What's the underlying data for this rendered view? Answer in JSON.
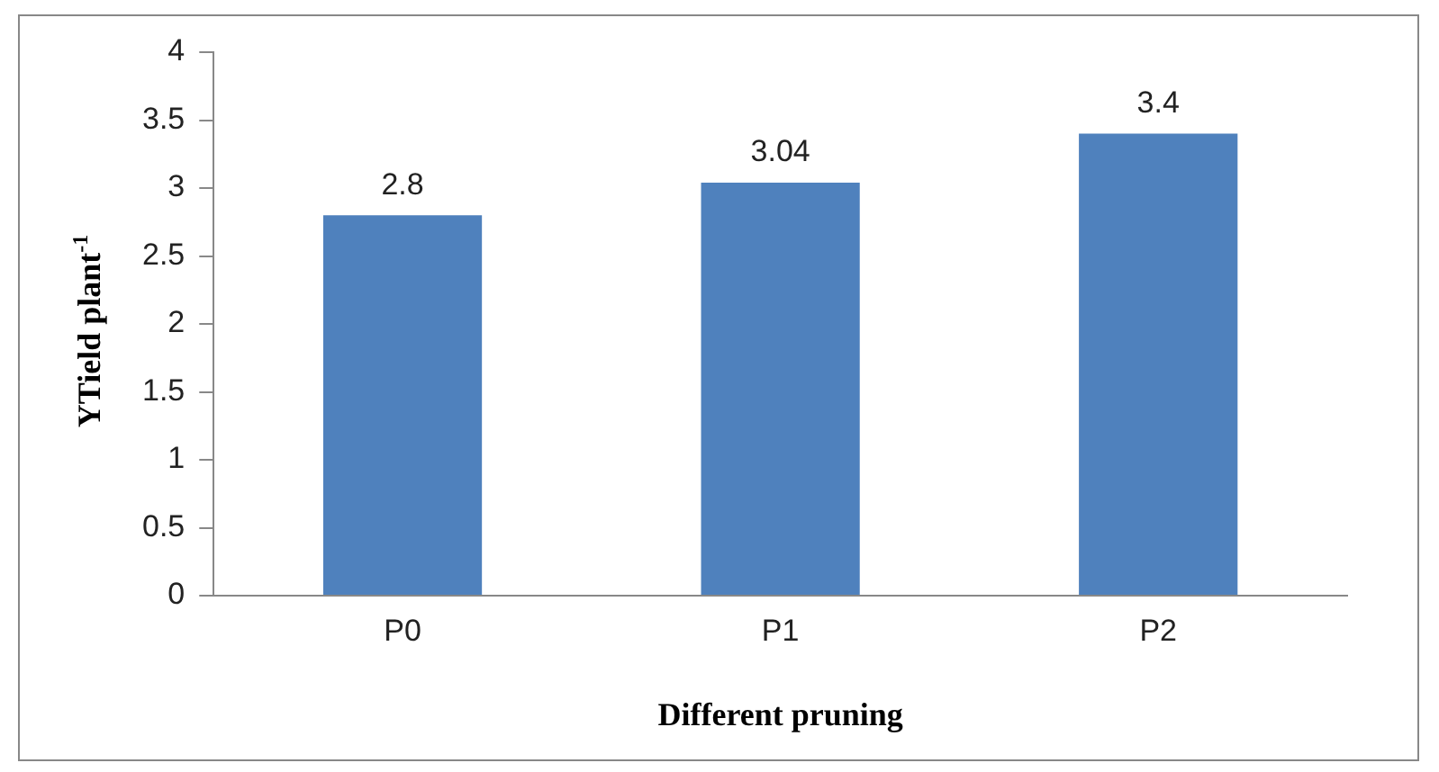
{
  "chart_data": {
    "type": "bar",
    "xlabel": "Different pruning",
    "ylabel": "YTield plant$^{-1}$",
    "categories": [
      "P0",
      "P1",
      "P2"
    ],
    "values": [
      2.8,
      3.04,
      3.4
    ],
    "color": "#4f81bd",
    "ylim": [
      0,
      4
    ],
    "yticks": [
      0,
      0.5,
      1,
      1.5,
      2,
      2.5,
      3,
      3.5,
      4
    ],
    "grid": false,
    "legend": false,
    "data_labels": true
  }
}
